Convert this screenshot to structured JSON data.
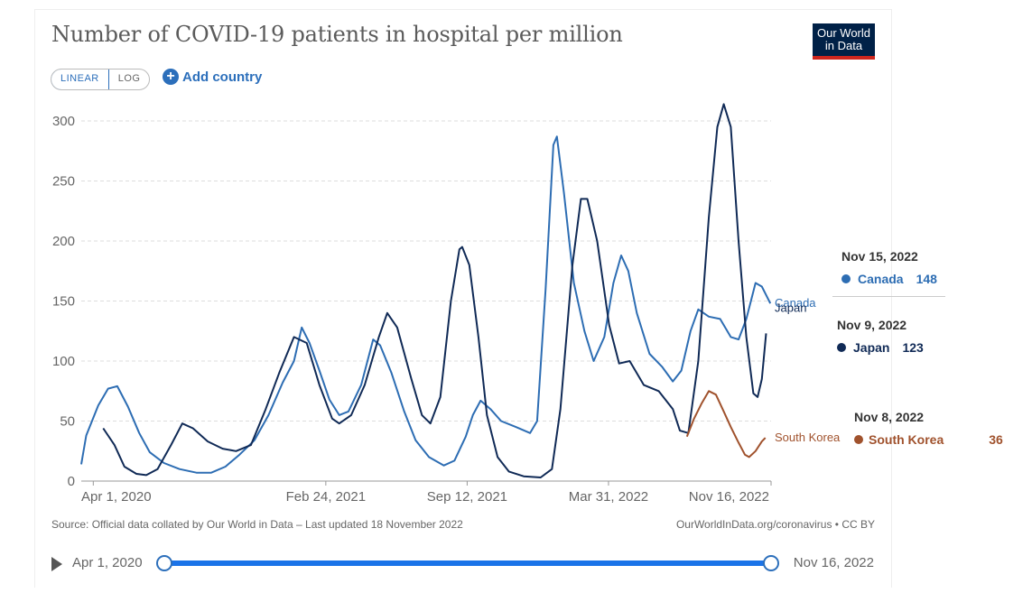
{
  "header": {
    "title": "Number of COVID-19 patients in hospital per million",
    "logo_line1": "Our World",
    "logo_line2": "in Data"
  },
  "controls": {
    "linear_label": "LINEAR",
    "log_label": "LOG",
    "add_country_label": "Add country"
  },
  "chart_data": {
    "type": "line",
    "title": "Number of COVID-19 patients in hospital per million",
    "xlabel": "",
    "ylabel": "",
    "ylim": [
      0,
      320
    ],
    "yticks": [
      0,
      50,
      100,
      150,
      200,
      250,
      300
    ],
    "xticks": [
      "Apr 1, 2020",
      "Feb 24, 2021",
      "Sep 12, 2021",
      "Mar 31, 2022",
      "Nov 16, 2022"
    ],
    "x_range": [
      "2020-03-15",
      "2022-11-16"
    ],
    "grid": "horizontal dashed",
    "series": [
      {
        "name": "Canada",
        "color": "#2d6db3",
        "points": [
          [
            "2020-03-15",
            14
          ],
          [
            "2020-03-22",
            38
          ],
          [
            "2020-04-08",
            63
          ],
          [
            "2020-04-22",
            77
          ],
          [
            "2020-05-05",
            79
          ],
          [
            "2020-05-20",
            62
          ],
          [
            "2020-06-05",
            40
          ],
          [
            "2020-06-20",
            24
          ],
          [
            "2020-07-10",
            15
          ],
          [
            "2020-08-01",
            10
          ],
          [
            "2020-08-25",
            7
          ],
          [
            "2020-09-15",
            7
          ],
          [
            "2020-10-05",
            12
          ],
          [
            "2020-10-25",
            22
          ],
          [
            "2020-11-15",
            34
          ],
          [
            "2020-12-05",
            55
          ],
          [
            "2020-12-25",
            82
          ],
          [
            "2021-01-10",
            100
          ],
          [
            "2021-01-21",
            128
          ],
          [
            "2021-02-01",
            115
          ],
          [
            "2021-02-15",
            92
          ],
          [
            "2021-03-01",
            68
          ],
          [
            "2021-03-15",
            55
          ],
          [
            "2021-03-28",
            58
          ],
          [
            "2021-04-15",
            80
          ],
          [
            "2021-05-02",
            118
          ],
          [
            "2021-05-12",
            113
          ],
          [
            "2021-05-28",
            90
          ],
          [
            "2021-06-15",
            58
          ],
          [
            "2021-07-01",
            34
          ],
          [
            "2021-07-20",
            20
          ],
          [
            "2021-08-10",
            13
          ],
          [
            "2021-08-25",
            17
          ],
          [
            "2021-09-10",
            37
          ],
          [
            "2021-09-20",
            55
          ],
          [
            "2021-10-01",
            67
          ],
          [
            "2021-10-15",
            60
          ],
          [
            "2021-10-30",
            50
          ],
          [
            "2021-11-20",
            45
          ],
          [
            "2021-12-10",
            40
          ],
          [
            "2021-12-20",
            50
          ],
          [
            "2022-01-01",
            160
          ],
          [
            "2022-01-12",
            280
          ],
          [
            "2022-01-17",
            287
          ],
          [
            "2022-01-27",
            240
          ],
          [
            "2022-02-10",
            165
          ],
          [
            "2022-02-25",
            125
          ],
          [
            "2022-03-10",
            100
          ],
          [
            "2022-03-25",
            120
          ],
          [
            "2022-04-07",
            165
          ],
          [
            "2022-04-18",
            188
          ],
          [
            "2022-04-28",
            175
          ],
          [
            "2022-05-10",
            140
          ],
          [
            "2022-05-28",
            106
          ],
          [
            "2022-06-15",
            95
          ],
          [
            "2022-06-30",
            83
          ],
          [
            "2022-07-12",
            92
          ],
          [
            "2022-07-25",
            125
          ],
          [
            "2022-08-05",
            143
          ],
          [
            "2022-08-20",
            137
          ],
          [
            "2022-09-05",
            135
          ],
          [
            "2022-09-20",
            120
          ],
          [
            "2022-10-01",
            118
          ],
          [
            "2022-10-12",
            135
          ],
          [
            "2022-10-25",
            165
          ],
          [
            "2022-11-03",
            162
          ],
          [
            "2022-11-09",
            155
          ],
          [
            "2022-11-15",
            148
          ]
        ]
      },
      {
        "name": "Japan",
        "color": "#102a56",
        "points": [
          [
            "2020-04-15",
            44
          ],
          [
            "2020-05-01",
            30
          ],
          [
            "2020-05-15",
            12
          ],
          [
            "2020-06-01",
            6
          ],
          [
            "2020-06-15",
            5
          ],
          [
            "2020-07-01",
            10
          ],
          [
            "2020-07-20",
            30
          ],
          [
            "2020-08-05",
            48
          ],
          [
            "2020-08-20",
            44
          ],
          [
            "2020-09-10",
            33
          ],
          [
            "2020-10-01",
            27
          ],
          [
            "2020-10-20",
            25
          ],
          [
            "2020-11-10",
            30
          ],
          [
            "2020-12-01",
            60
          ],
          [
            "2020-12-20",
            90
          ],
          [
            "2021-01-10",
            120
          ],
          [
            "2021-01-28",
            115
          ],
          [
            "2021-02-15",
            80
          ],
          [
            "2021-03-05",
            52
          ],
          [
            "2021-03-15",
            48
          ],
          [
            "2021-04-01",
            55
          ],
          [
            "2021-04-20",
            80
          ],
          [
            "2021-05-10",
            120
          ],
          [
            "2021-05-22",
            140
          ],
          [
            "2021-06-05",
            128
          ],
          [
            "2021-06-25",
            85
          ],
          [
            "2021-07-10",
            55
          ],
          [
            "2021-07-22",
            48
          ],
          [
            "2021-08-05",
            70
          ],
          [
            "2021-08-20",
            150
          ],
          [
            "2021-09-01",
            193
          ],
          [
            "2021-09-05",
            195
          ],
          [
            "2021-09-15",
            180
          ],
          [
            "2021-09-28",
            120
          ],
          [
            "2021-10-10",
            55
          ],
          [
            "2021-10-25",
            20
          ],
          [
            "2021-11-10",
            8
          ],
          [
            "2021-12-01",
            4
          ],
          [
            "2021-12-25",
            3
          ],
          [
            "2022-01-10",
            10
          ],
          [
            "2022-01-22",
            60
          ],
          [
            "2022-02-08",
            180
          ],
          [
            "2022-02-20",
            235
          ],
          [
            "2022-03-01",
            235
          ],
          [
            "2022-03-15",
            200
          ],
          [
            "2022-04-01",
            130
          ],
          [
            "2022-04-15",
            98
          ],
          [
            "2022-04-30",
            100
          ],
          [
            "2022-05-20",
            80
          ],
          [
            "2022-06-10",
            75
          ],
          [
            "2022-06-30",
            60
          ],
          [
            "2022-07-10",
            42
          ],
          [
            "2022-07-22",
            40
          ],
          [
            "2022-08-05",
            100
          ],
          [
            "2022-08-20",
            220
          ],
          [
            "2022-09-01",
            295
          ],
          [
            "2022-09-10",
            314
          ],
          [
            "2022-09-20",
            295
          ],
          [
            "2022-10-01",
            200
          ],
          [
            "2022-10-12",
            120
          ],
          [
            "2022-10-22",
            73
          ],
          [
            "2022-10-28",
            70
          ],
          [
            "2022-11-03",
            85
          ],
          [
            "2022-11-09",
            123
          ]
        ]
      },
      {
        "name": "South Korea",
        "color": "#a0522d",
        "points": [
          [
            "2022-07-20",
            37
          ],
          [
            "2022-07-30",
            52
          ],
          [
            "2022-08-10",
            65
          ],
          [
            "2022-08-20",
            75
          ],
          [
            "2022-08-30",
            72
          ],
          [
            "2022-09-10",
            58
          ],
          [
            "2022-09-20",
            45
          ],
          [
            "2022-10-01",
            32
          ],
          [
            "2022-10-10",
            22
          ],
          [
            "2022-10-16",
            20
          ],
          [
            "2022-10-25",
            25
          ],
          [
            "2022-11-03",
            33
          ],
          [
            "2022-11-08",
            36
          ]
        ]
      }
    ],
    "end_labels": {
      "canada": "Canada",
      "japan": "Japan",
      "south_korea": "South Korea"
    }
  },
  "tooltip": {
    "canada": {
      "date": "Nov 15, 2022",
      "name": "Canada",
      "value": "148",
      "color": "#2d6db3"
    },
    "japan": {
      "date": "Nov 9, 2022",
      "name": "Japan",
      "value": "123",
      "color": "#102a56"
    },
    "south_korea": {
      "date": "Nov 8, 2022",
      "name": "South Korea",
      "value": "36",
      "color": "#a0522d"
    }
  },
  "footer": {
    "source": "Source: Official data collated by Our World in Data – Last updated 18 November 2022",
    "license": "OurWorldInData.org/coronavirus • CC BY"
  },
  "timeline": {
    "start": "Apr 1, 2020",
    "end": "Nov 16, 2022"
  }
}
